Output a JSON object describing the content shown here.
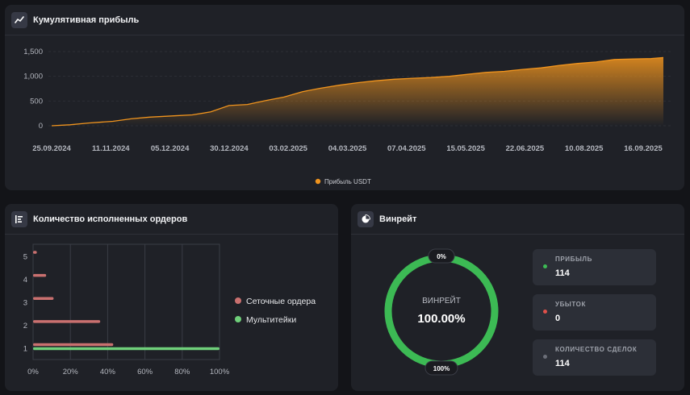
{
  "cumulative": {
    "title": "Кумулятивная прибыль",
    "icon": "trend-line-icon",
    "legend_label": "Прибыль USDT",
    "accent": "#f0941e",
    "chart_data": {
      "type": "area",
      "title": "",
      "xlabel": "",
      "ylabel": "",
      "ylim": [
        0,
        1500
      ],
      "yticks": [
        0,
        500,
        1000,
        1500
      ],
      "ytick_labels": [
        "0",
        "500",
        "1,000",
        "1,500"
      ],
      "xtick_labels": [
        "25.09.2024",
        "11.11.2024",
        "05.12.2024",
        "30.12.2024",
        "03.02.2025",
        "04.03.2025",
        "07.04.2025",
        "15.05.2025",
        "22.06.2025",
        "10.08.2025",
        "16.09.2025"
      ],
      "series": [
        {
          "name": "Прибыль USDT",
          "x": [
            0,
            0.03,
            0.06,
            0.1,
            0.13,
            0.16,
            0.2,
            0.23,
            0.26,
            0.29,
            0.32,
            0.35,
            0.38,
            0.41,
            0.44,
            0.47,
            0.5,
            0.53,
            0.56,
            0.59,
            0.62,
            0.65,
            0.68,
            0.71,
            0.74,
            0.77,
            0.8,
            0.83,
            0.86,
            0.89,
            0.92,
            0.95,
            0.98,
            1
          ],
          "y": [
            0,
            20,
            55,
            90,
            140,
            175,
            200,
            220,
            280,
            410,
            430,
            510,
            580,
            690,
            760,
            820,
            870,
            910,
            940,
            960,
            975,
            1000,
            1040,
            1080,
            1100,
            1140,
            1170,
            1220,
            1260,
            1290,
            1340,
            1350,
            1360,
            1380
          ]
        }
      ]
    }
  },
  "orders": {
    "title": "Количество исполненных ордеров",
    "icon": "list-bars-icon",
    "chart_data": {
      "type": "bar",
      "orientation": "horizontal",
      "categories": [
        "1",
        "2",
        "3",
        "4",
        "5"
      ],
      "xlim": [
        0,
        100
      ],
      "xtick_labels": [
        "0%",
        "20%",
        "40%",
        "60%",
        "80%",
        "100%"
      ],
      "series": [
        {
          "name": "Сеточные ордера",
          "color": "#c9706f",
          "values": [
            43,
            36,
            11,
            7,
            2
          ]
        },
        {
          "name": "Мультитейки",
          "color": "#6fcf7a",
          "values": [
            100,
            0,
            0,
            0,
            0
          ]
        }
      ],
      "legend": "right"
    }
  },
  "winrate": {
    "title": "Винрейт",
    "icon": "pie-chart-icon",
    "center_label": "ВИНРЕЙТ",
    "center_value": "100.00%",
    "top_badge": "0%",
    "bottom_badge": "100%",
    "percent": 100,
    "ring_color": "#3cba54",
    "stats": [
      {
        "label": "ПРИБЫЛЬ",
        "value": "114",
        "color": "#3cba54"
      },
      {
        "label": "УБЫТОК",
        "value": "0",
        "color": "#e0504a"
      },
      {
        "label": "КОЛИЧЕСТВО СДЕЛОК",
        "value": "114",
        "color": "#6b6e78"
      }
    ]
  }
}
